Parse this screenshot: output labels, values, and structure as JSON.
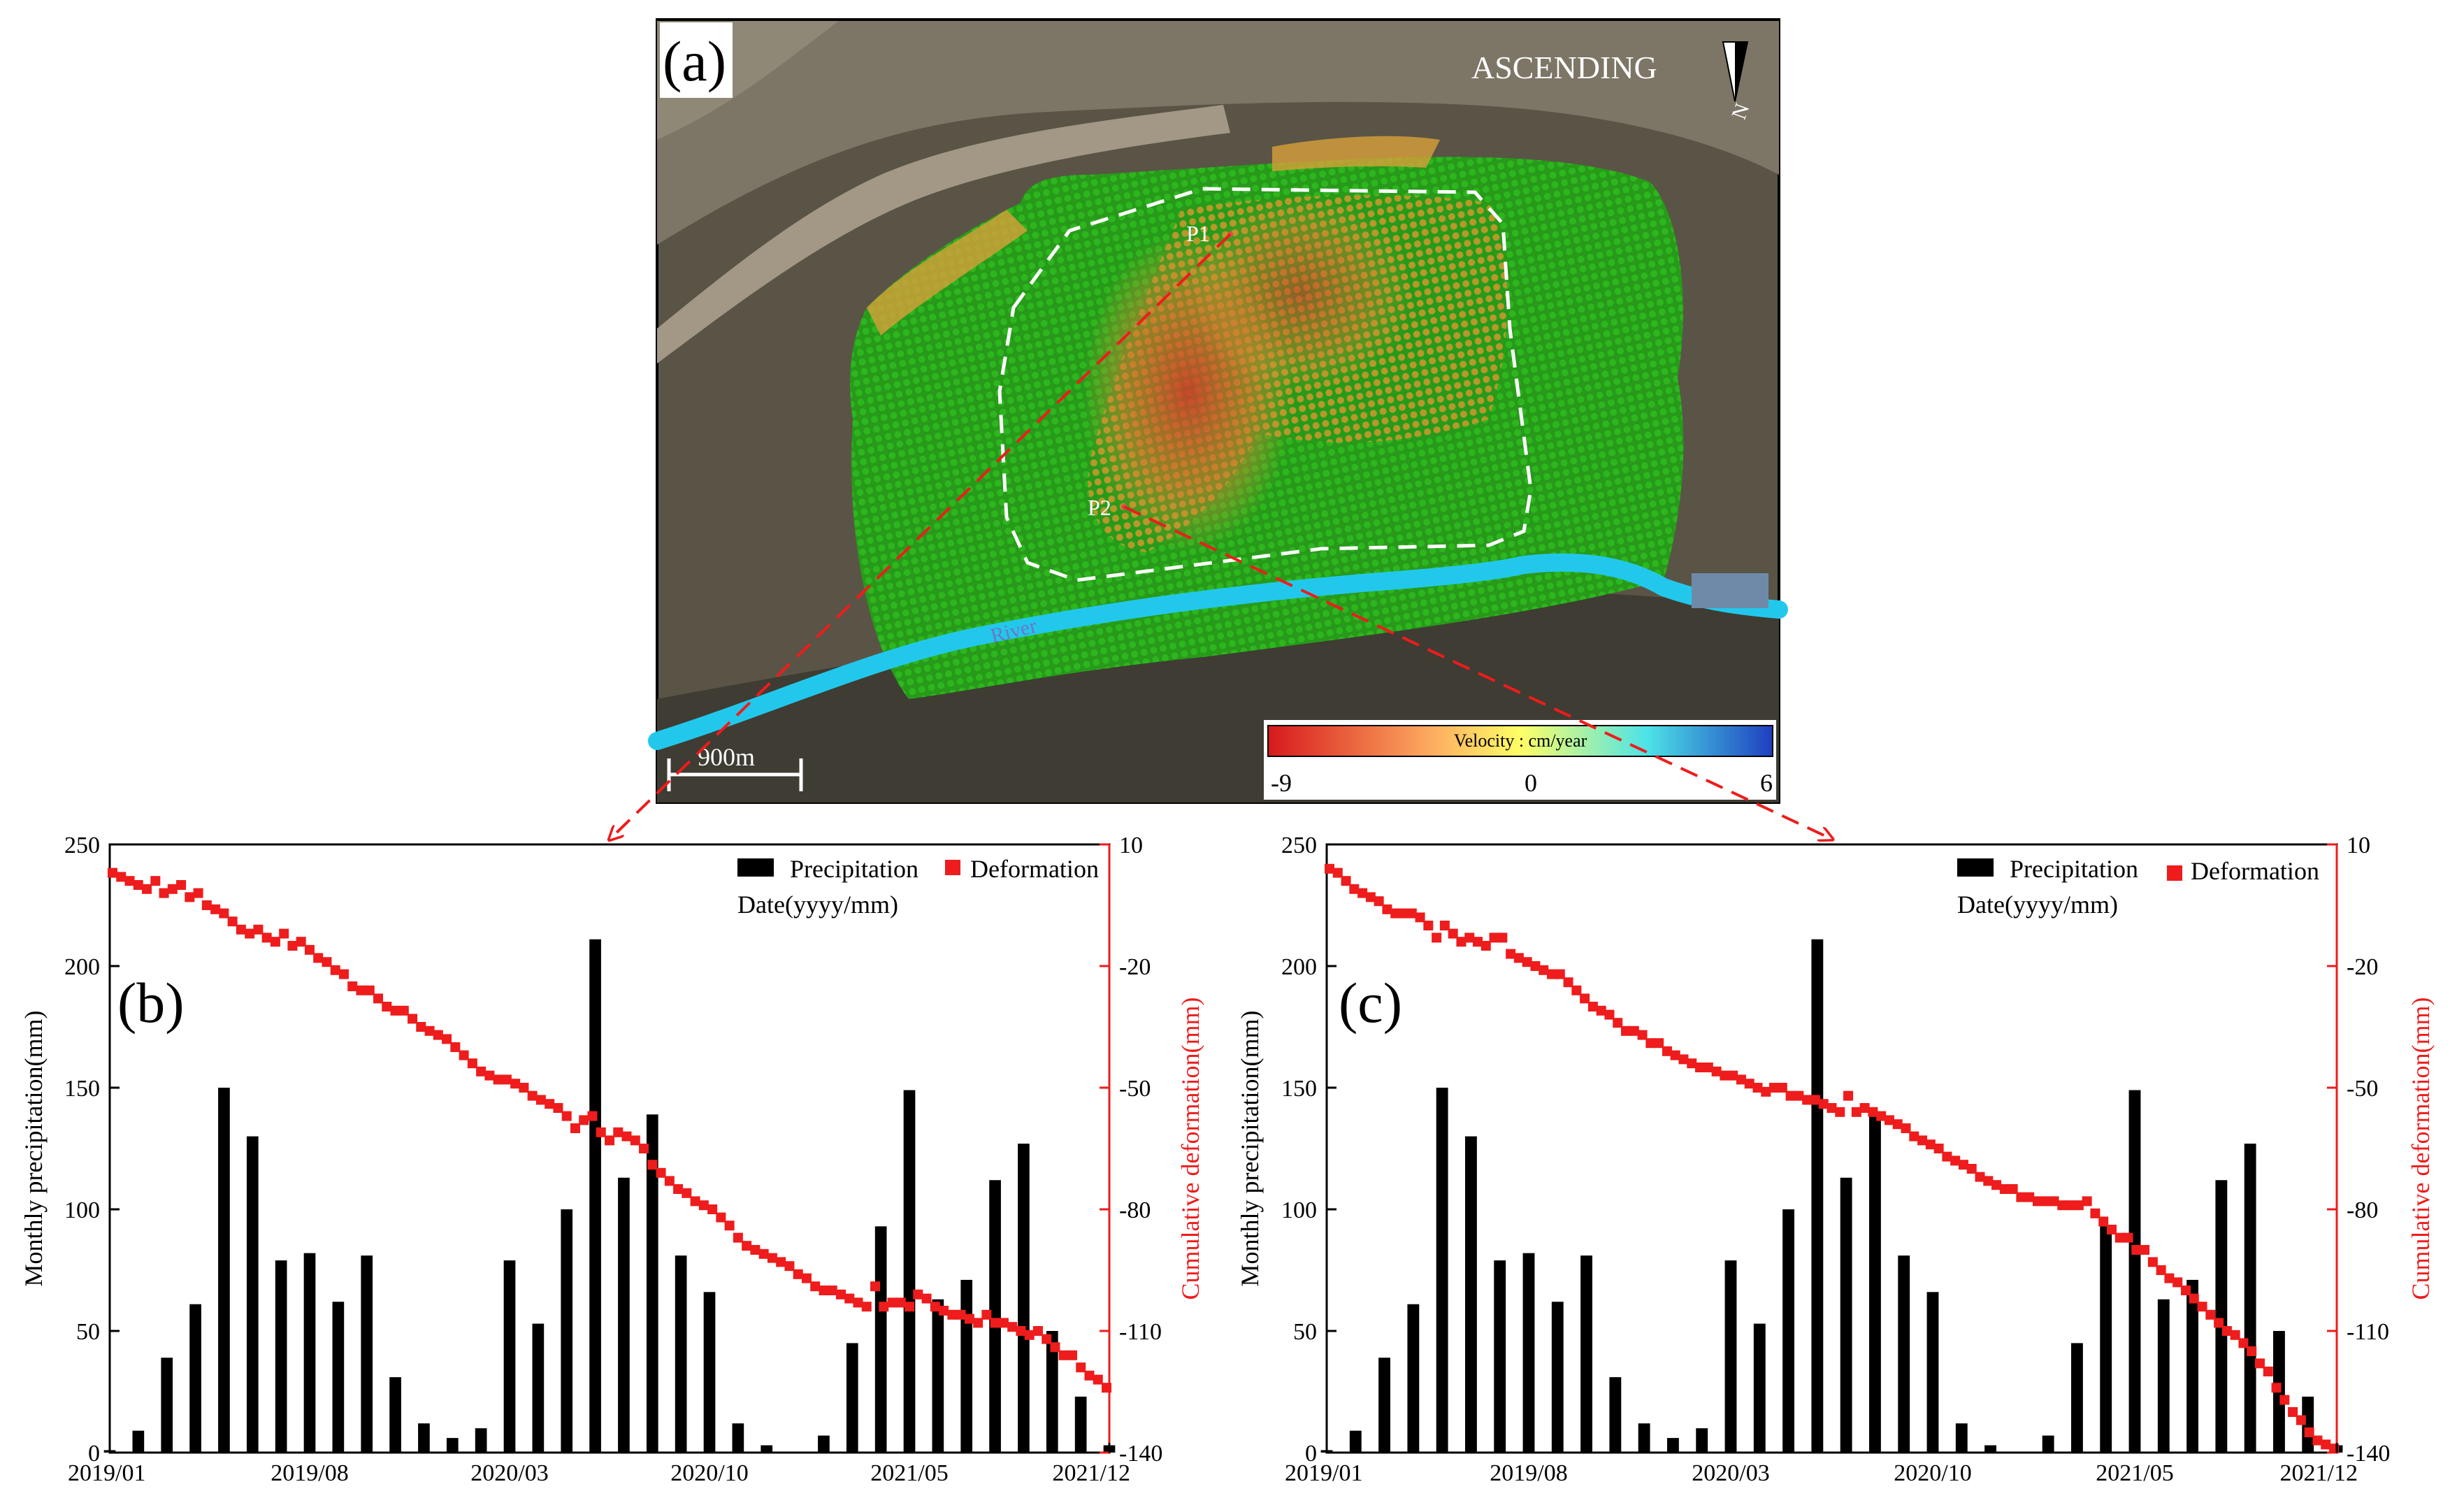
{
  "panel_a": {
    "label": "(a)",
    "orbit": "ASCENDING",
    "north": "N",
    "scale_label": "900m",
    "river_label": "River",
    "points": [
      "P1",
      "P2"
    ],
    "colorbar": {
      "title": "Velocity : cm/year",
      "min_label": "-9",
      "mid_label": "0",
      "max_label": "6",
      "colors": [
        "#d7191c",
        "#fdae61",
        "#ffff66",
        "#4de3e8",
        "#1f3fbf"
      ]
    }
  },
  "colors": {
    "precip": "#000000",
    "deformation": "#ee1c1c",
    "arrow": "#ee1c1c"
  },
  "chart_data": [
    {
      "type": "bar+scatter",
      "panel_label": "(b)",
      "xlabel": "Date(yyyy/mm)",
      "ylabel_left": "Monthly precipitation(mm)",
      "ylabel_right": "Cumulative deformation(mm)",
      "legend": {
        "precip": "Precipitation",
        "deformation": "Deformation",
        "position": "top-right"
      },
      "x_tick_labels": [
        "2019/01",
        "2019/08",
        "2020/03",
        "2020/10",
        "2021/05",
        "2021/12"
      ],
      "y_left": {
        "lim": [
          0,
          250
        ],
        "ticks": [
          "0",
          "50",
          "100",
          "150",
          "200",
          "250"
        ]
      },
      "y_right": {
        "lim": [
          -140,
          10
        ],
        "ticks": [
          "10",
          "-20",
          "-50",
          "-80",
          "-110",
          "-140"
        ]
      },
      "precipitation": [
        1,
        9,
        39,
        61,
        150,
        130,
        79,
        82,
        62,
        81,
        31,
        12,
        6,
        10,
        79,
        53,
        100,
        211,
        113,
        139,
        81,
        66,
        12,
        3,
        0,
        7,
        45,
        93,
        149,
        63,
        71,
        112,
        127,
        50,
        23,
        3
      ],
      "deformation": [
        3,
        2,
        1,
        0,
        -1,
        1,
        -2,
        -1,
        0,
        -3,
        -2,
        -5,
        -6,
        -7,
        -9,
        -11,
        -12,
        -11,
        -13,
        -14,
        -12,
        -15,
        -14,
        -16,
        -18,
        -19,
        -21,
        -22,
        -25,
        -26,
        -26,
        -28,
        -30,
        -31,
        -31,
        -33,
        -35,
        -36,
        -37,
        -38,
        -40,
        -42,
        -44,
        -46,
        -47,
        -48,
        -48,
        -49,
        -50,
        -52,
        -53,
        -54,
        -55,
        -57,
        -60,
        -58,
        -57,
        -61,
        -63,
        -61,
        -62,
        -63,
        -65,
        -69,
        -71,
        -73,
        -75,
        -76,
        -78,
        -79,
        -80,
        -82,
        -84,
        -87,
        -89,
        -90,
        -91,
        -92,
        -93,
        -94,
        -96,
        -97,
        -99,
        -100,
        -100,
        -101,
        -102,
        -103,
        -104,
        -99,
        -104,
        -103,
        -103,
        -104,
        -101,
        -102,
        -104,
        -105,
        -106,
        -106,
        -107,
        -108,
        -106,
        -108,
        -108,
        -109,
        -110,
        -111,
        -110,
        -112,
        -114,
        -116,
        -116,
        -119,
        -121,
        -122,
        -124
      ]
    },
    {
      "type": "bar+scatter",
      "panel_label": "(c)",
      "xlabel": "Date(yyyy/mm)",
      "ylabel_left": "Monthly precipitation(mm)",
      "ylabel_right": "Cumulative deformation(mm)",
      "legend": {
        "precip": "Precipitation",
        "deformation": "Deformation",
        "position": "top-right"
      },
      "x_tick_labels": [
        "2019/01",
        "2019/08",
        "2020/03",
        "2020/10",
        "2021/05",
        "2021/12"
      ],
      "y_left": {
        "lim": [
          0,
          250
        ],
        "ticks": [
          "0",
          "50",
          "100",
          "150",
          "200",
          "250"
        ]
      },
      "y_right": {
        "lim": [
          -140,
          10
        ],
        "ticks": [
          "10",
          "-20",
          "-50",
          "-80",
          "-110",
          "-140"
        ]
      },
      "precipitation": [
        1,
        9,
        39,
        61,
        150,
        130,
        79,
        82,
        62,
        81,
        31,
        12,
        6,
        10,
        79,
        53,
        100,
        211,
        113,
        139,
        81,
        66,
        12,
        3,
        0,
        7,
        45,
        93,
        149,
        63,
        71,
        112,
        127,
        50,
        23,
        3
      ],
      "deformation": [
        4,
        3,
        1,
        -1,
        -2,
        -3,
        -4,
        -6,
        -7,
        -7,
        -7,
        -8,
        -10,
        -13,
        -10,
        -12,
        -14,
        -13,
        -14,
        -15,
        -13,
        -13,
        -17,
        -18,
        -19,
        -20,
        -21,
        -22,
        -22,
        -24,
        -26,
        -28,
        -30,
        -31,
        -32,
        -34,
        -36,
        -36,
        -37,
        -39,
        -39,
        -41,
        -42,
        -43,
        -44,
        -45,
        -45,
        -46,
        -47,
        -47,
        -48,
        -49,
        -50,
        -51,
        -50,
        -50,
        -52,
        -52,
        -53,
        -53,
        -54,
        -55,
        -56,
        -52,
        -56,
        -55,
        -56,
        -57,
        -58,
        -59,
        -60,
        -62,
        -63,
        -64,
        -65,
        -67,
        -68,
        -69,
        -70,
        -72,
        -73,
        -74,
        -75,
        -75,
        -77,
        -77,
        -78,
        -78,
        -78,
        -79,
        -79,
        -79,
        -78,
        -81,
        -83,
        -85,
        -87,
        -87,
        -90,
        -90,
        -93,
        -95,
        -97,
        -98,
        -100,
        -102,
        -104,
        -106,
        -108,
        -110,
        -111,
        -113,
        -115,
        -118,
        -120,
        -124,
        -127,
        -130,
        -132,
        -135,
        -137,
        -138,
        -139
      ]
    }
  ]
}
